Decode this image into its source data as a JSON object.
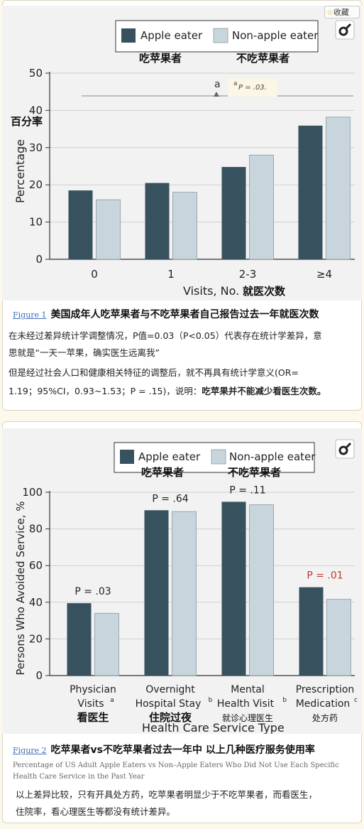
{
  "favorite_label": "收藏",
  "colors": {
    "apple": "#37525e",
    "non_apple": "#c9d5dc",
    "red_p": "#c0392b",
    "link": "#3b6fb6"
  },
  "panel1": {
    "legend": {
      "apple": "Apple eater",
      "non_apple": "Non-apple eater"
    },
    "legend_cn": {
      "apple": "吃苹果者",
      "non_apple": "不吃苹果者"
    },
    "y_axis_cn": "百分率",
    "x_axis_cn": "就医次数",
    "sig_marker": "a",
    "sig_note_marker": "a",
    "sig_note_text": "P = .03.",
    "chart_data": {
      "type": "bar",
      "ylabel": "Percentage",
      "xlabel": "Visits, No.",
      "ylim": [
        0,
        50
      ],
      "yticks": [
        "0",
        "10",
        "20",
        "30",
        "40",
        "50"
      ],
      "categories": [
        "0",
        "1",
        "2-3",
        "≥4"
      ],
      "series": [
        {
          "name": "Apple eater",
          "values": [
            18.5,
            20.5,
            24.8,
            35.9
          ]
        },
        {
          "name": "Non-apple eater",
          "values": [
            16,
            18,
            28,
            38.2
          ]
        }
      ]
    },
    "caption": {
      "fig_label": "Figure 1",
      "title": "美国成年人吃苹果者与不吃苹果者自己报告过去一年就医次数"
    },
    "notes": {
      "line1": "在未经过差异统计学调整情况，P值=0.03（P<0.05）代表存在统计学差异，意",
      "line2": "思就是“一天一苹果，确实医生远离我”",
      "line3": "但是经过社会人口和健康相关特征的调整后，就不再具有统计学意义(OR=",
      "line4_plain": "1.19；95%CI，0.93~1.53；P = .15)，说明：",
      "line4_bold": "吃苹果并不能减少看医生次数。"
    }
  },
  "panel2": {
    "legend": {
      "apple": "Apple eater",
      "non_apple": "Non-apple eater"
    },
    "legend_cn": {
      "apple": "吃苹果者",
      "non_apple": "不吃苹果者"
    },
    "p_values": [
      "P = .03",
      "P = .64",
      "P = .11",
      "P = .01"
    ],
    "category_lines": [
      [
        "Physician",
        "Visits"
      ],
      [
        "Overnight",
        "Hospital Stay"
      ],
      [
        "Mental",
        "Health Visit"
      ],
      [
        "Prescription",
        "Medication"
      ]
    ],
    "category_superscripts": [
      "a",
      "b",
      "b",
      "c"
    ],
    "category_cn": [
      "看医生",
      "住院过夜",
      "就诊心理医生",
      "处方药"
    ],
    "chart_data": {
      "type": "bar",
      "ylabel": "Persons Who Avoided Service, %",
      "xlabel": "Health Care Service Type",
      "ylim": [
        0,
        100
      ],
      "yticks": [
        "0",
        "20",
        "40",
        "60",
        "80",
        "100"
      ],
      "categories": [
        "Physician Visits",
        "Overnight Hospital Stay",
        "Mental Health Visit",
        "Prescription Medication"
      ],
      "series": [
        {
          "name": "Apple eater",
          "values": [
            39.5,
            90.2,
            94.8,
            48.2
          ]
        },
        {
          "name": "Non-apple eater",
          "values": [
            34,
            89.5,
            93.2,
            41.6
          ]
        }
      ]
    },
    "caption": {
      "fig_label": "Figure 2",
      "title": "吃苹果者vs不吃苹果者过去一年中 以上几种医疗服务使用率",
      "subtitle": "Percentage of US Adult Apple Eaters vs Non–Apple Eaters Who Did Not Use Each Specific Health Care Service in the Past Year"
    },
    "notes": {
      "line1": "以上差异比较，只有开具处方药，吃苹果者明显少于不吃苹果者，而看医生，",
      "line2": "住院率，看心理医生等都没有统计差异。"
    }
  }
}
